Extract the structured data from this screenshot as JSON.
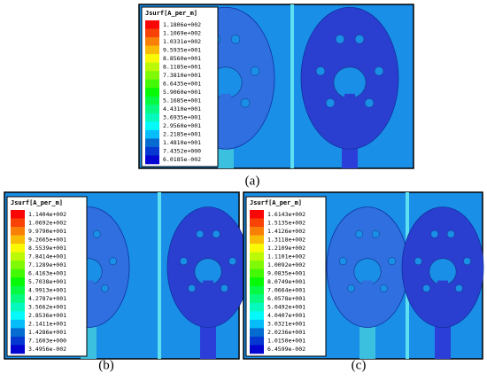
{
  "panels": [
    {
      "caption": "(a)",
      "legend_title": "Jsurf[A_per_m]",
      "legend_values": [
        "1.1806e+002",
        "1.1069e+002",
        "1.0331e+002",
        "9.5935e+001",
        "8.8560e+001",
        "8.1185e+001",
        "7.3810e+001",
        "6.6435e+001",
        "5.9060e+001",
        "5.1685e+001",
        "4.4310e+001",
        "3.6935e+001",
        "2.9560e+001",
        "2.2185e+001",
        "1.4810e+001",
        "7.4352e+000",
        "6.0185e-002"
      ]
    },
    {
      "caption": "(b)",
      "legend_title": "Jsurf[A_per_m]",
      "legend_values": [
        "1.1404e+002",
        "1.0692e+002",
        "9.9790e+001",
        "9.2665e+001",
        "8.5539e+001",
        "7.8414e+001",
        "7.1289e+001",
        "6.4163e+001",
        "5.7038e+001",
        "4.9913e+001",
        "4.2787e+001",
        "3.5662e+001",
        "2.8536e+001",
        "2.1411e+001",
        "1.4286e+001",
        "7.1603e+000",
        "3.4956e-002"
      ]
    },
    {
      "caption": "(c)",
      "legend_title": "Jsurf[A_per_m]",
      "legend_values": [
        "1.6143e+002",
        "1.5135e+002",
        "1.4126e+002",
        "1.3118e+002",
        "1.2109e+002",
        "1.1101e+002",
        "1.0092e+002",
        "9.0835e+001",
        "8.0749e+001",
        "7.0664e+001",
        "6.0578e+001",
        "5.0492e+001",
        "4.0407e+001",
        "3.0321e+001",
        "2.0236e+001",
        "1.0150e+001",
        "6.4599e-002"
      ]
    }
  ]
}
